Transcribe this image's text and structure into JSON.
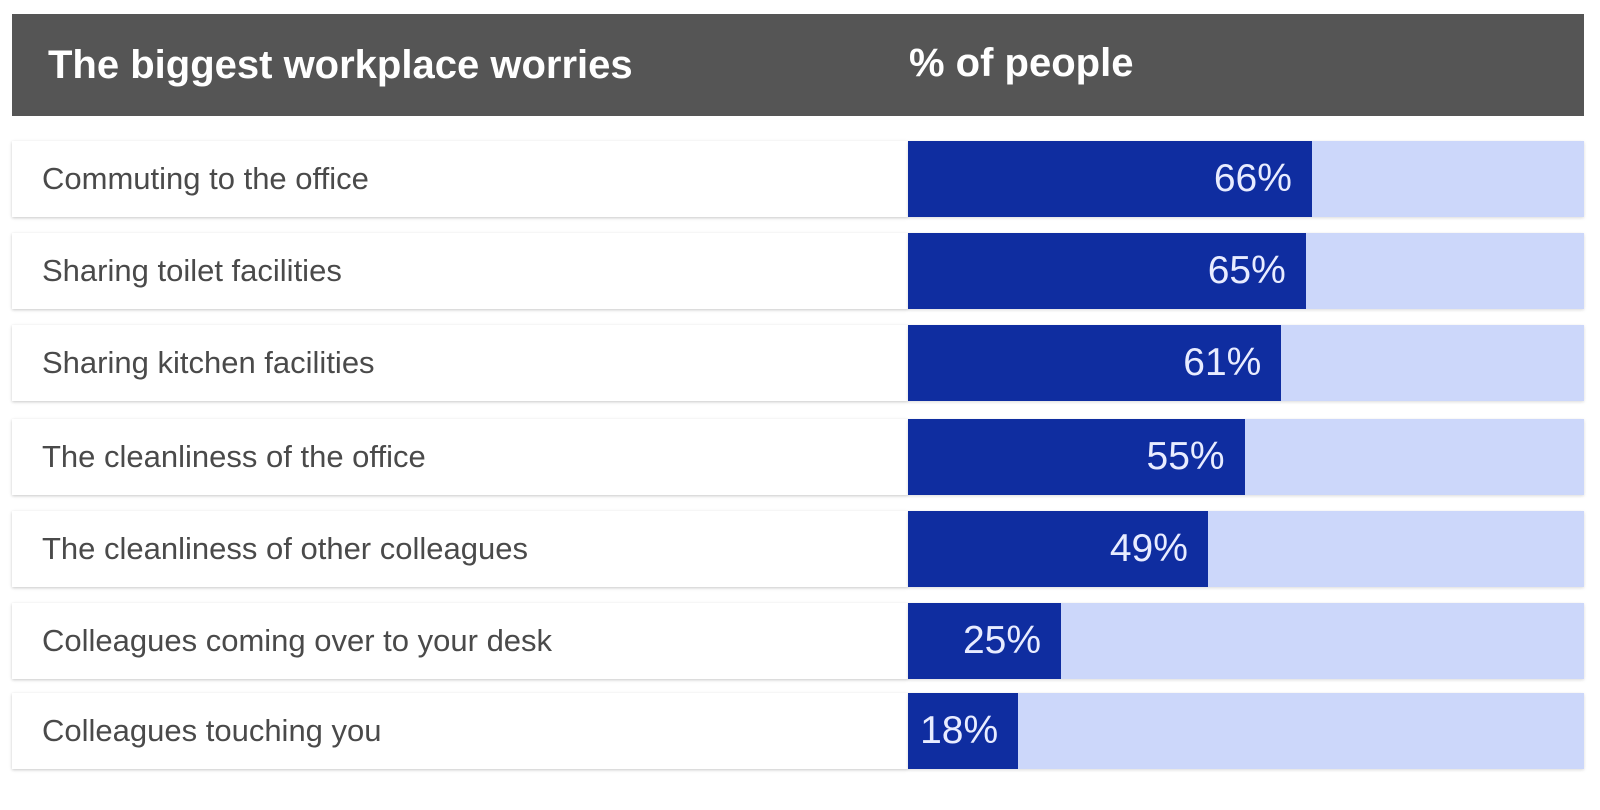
{
  "header": {
    "title": "The biggest workplace worries",
    "column_label": "% of people"
  },
  "colors": {
    "header_bg": "#555555",
    "bar_fill": "#0f2da0",
    "bar_track": "#ccd7fa",
    "label_text": "#4a4a4a"
  },
  "chart_data": {
    "type": "bar",
    "orientation": "horizontal",
    "title": "The biggest workplace worries",
    "value_label": "% of people",
    "xlim": [
      0,
      100
    ],
    "categories": [
      "Commuting to the office",
      "Sharing toilet facilities",
      "Sharing kitchen facilities",
      "The cleanliness of the office",
      "The cleanliness of other colleagues",
      "Colleagues coming over to your desk",
      "Colleagues touching you"
    ],
    "values": [
      66,
      65,
      61,
      55,
      49,
      25,
      18
    ],
    "value_labels": [
      "66%",
      "65%",
      "61%",
      "55%",
      "49%",
      "25%",
      "18%"
    ]
  }
}
